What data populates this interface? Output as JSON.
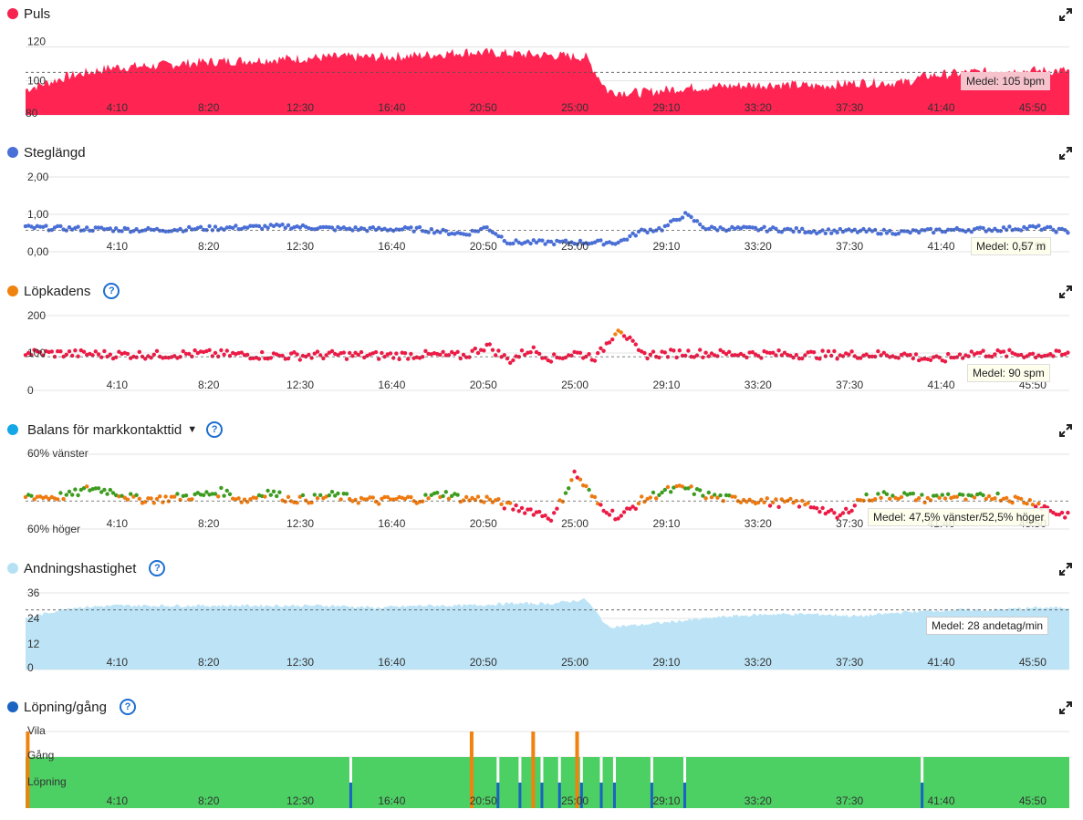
{
  "x_ticks": [
    "4:10",
    "8:20",
    "12:30",
    "16:40",
    "20:50",
    "25:00",
    "29:10",
    "33:20",
    "37:30",
    "41:40",
    "45:50"
  ],
  "panels": {
    "puls": {
      "title": "Puls",
      "color": "#f4234f",
      "y_labels": [
        "120",
        "100",
        "80"
      ],
      "avg_label": "Medel: 105 bpm"
    },
    "steg": {
      "title": "Steglängd",
      "color": "#4a6fd6",
      "y_labels": [
        "2,00",
        "1,00",
        "0,00"
      ],
      "avg_label": "Medel: 0,57 m"
    },
    "kadens": {
      "title": "Löpkadens",
      "color": "#f0820f",
      "y_labels": [
        "200",
        "100",
        "0"
      ],
      "avg_label": "Medel: 90 spm"
    },
    "balans": {
      "title": "Balans för markkontakttid",
      "color": "#14a7e8",
      "y_labels": [
        "60% vänster",
        "60% höger"
      ],
      "avg_label": "Medel: 47,5% vänster/52,5% höger"
    },
    "andning": {
      "title": "Andningshastighet",
      "color": "#b6e0f4",
      "y_labels": [
        "36",
        "24",
        "12",
        "0"
      ],
      "avg_label": "Medel: 28 andetag/min"
    },
    "lopning": {
      "title": "Löpning/gång",
      "color": "#1a63c2",
      "y_labels": [
        "Vila",
        "Gång",
        "Löpning"
      ]
    }
  },
  "chart_data": [
    {
      "type": "area",
      "title": "Puls",
      "x_range": [
        "0:00",
        "47:30"
      ],
      "ylim": [
        80,
        125
      ],
      "average": 105,
      "series": [
        {
          "name": "Puls",
          "x_min": [
            0,
            2,
            4,
            6,
            8,
            10,
            12,
            14,
            16,
            18,
            20,
            22,
            24,
            25.5,
            26.5,
            28,
            30,
            32,
            34,
            36,
            38,
            40,
            41,
            43,
            45,
            47.3
          ],
          "values": [
            95,
            103,
            108,
            109,
            111,
            112,
            113,
            114,
            114,
            115,
            117,
            116,
            115,
            114,
            94,
            93,
            96,
            97,
            98,
            97,
            99,
            99,
            103,
            105,
            106,
            106
          ]
        }
      ]
    },
    {
      "type": "scatter",
      "title": "Steglängd",
      "x_range": [
        "0:00",
        "47:30"
      ],
      "ylim": [
        0,
        2
      ],
      "average": 0.57,
      "series": [
        {
          "name": "Steglängd",
          "x_min": [
            0,
            2,
            4,
            6,
            8,
            10,
            12,
            14,
            16,
            18,
            20,
            21,
            22,
            23,
            24,
            25,
            26,
            27,
            28,
            29,
            30,
            31,
            32,
            34,
            36,
            38,
            40,
            42,
            44,
            46,
            47.3
          ],
          "values": [
            0.65,
            0.62,
            0.6,
            0.58,
            0.62,
            0.65,
            0.68,
            0.62,
            0.6,
            0.6,
            0.47,
            0.65,
            0.25,
            0.25,
            0.25,
            0.25,
            0.25,
            0.25,
            0.55,
            0.62,
            1.0,
            0.62,
            0.62,
            0.6,
            0.55,
            0.55,
            0.52,
            0.58,
            0.6,
            0.65,
            0.55
          ]
        }
      ]
    },
    {
      "type": "scatter",
      "title": "Löpkadens",
      "x_range": [
        "0:00",
        "47:30"
      ],
      "ylim": [
        0,
        200
      ],
      "average": 90,
      "series": [
        {
          "name": "Löpkadens",
          "x_min": [
            0,
            2,
            4,
            6,
            8,
            10,
            12,
            14,
            16,
            18,
            20,
            21,
            22,
            23,
            24,
            25,
            26,
            27,
            28,
            30,
            32,
            34,
            36,
            38,
            40,
            41.5,
            43,
            45,
            47.3
          ],
          "values": [
            100,
            98,
            96,
            95,
            98,
            95,
            92,
            95,
            93,
            95,
            92,
            120,
            80,
            110,
            85,
            100,
            88,
            170,
            95,
            100,
            98,
            97,
            95,
            96,
            95,
            80,
            100,
            97,
            95
          ]
        }
      ]
    },
    {
      "type": "scatter",
      "title": "Balans för markkontakttid",
      "x_range": [
        "0:00",
        "47:30"
      ],
      "y_unit": "% vänster",
      "ylim": [
        40,
        60
      ],
      "average": 47.5,
      "series": [
        {
          "name": "Balans",
          "x_min": [
            0,
            1,
            2,
            3,
            4,
            5,
            6,
            7,
            8,
            9,
            10,
            11,
            12,
            13,
            14,
            15,
            16,
            17,
            18,
            19,
            20,
            21,
            22,
            23,
            24,
            25,
            26,
            27,
            28,
            29,
            30,
            31,
            32,
            33,
            34,
            35,
            36,
            37,
            38,
            39,
            40,
            41,
            42,
            43,
            44,
            45,
            46,
            47
          ],
          "values": [
            49,
            48.5,
            49,
            51,
            50,
            48,
            48,
            48.5,
            49,
            50,
            47.5,
            50,
            48,
            48,
            49,
            48,
            47.5,
            48,
            48,
            49.5,
            48,
            48,
            46,
            45,
            43,
            55,
            47,
            43,
            47.5,
            50,
            51,
            49,
            48,
            48,
            47,
            47,
            46,
            43,
            48,
            49,
            49,
            48,
            49,
            48,
            49,
            48,
            47,
            44
          ]
        }
      ]
    },
    {
      "type": "area",
      "title": "Andningshastighet",
      "x_range": [
        "0:00",
        "47:30"
      ],
      "ylim": [
        0,
        36
      ],
      "average": 28,
      "series": [
        {
          "name": "Andningshastighet",
          "x_min": [
            0,
            2,
            4,
            6,
            8,
            10,
            12,
            14,
            16,
            18,
            20,
            22,
            24,
            25.5,
            26.5,
            28,
            30,
            32,
            34,
            36,
            38,
            40,
            42,
            44,
            46,
            47.3
          ],
          "values": [
            24,
            29,
            30,
            30,
            30,
            30,
            30,
            30,
            29,
            30,
            30,
            31,
            31,
            33,
            20,
            21,
            23,
            25,
            26,
            26,
            25,
            27,
            28,
            28,
            29,
            29
          ]
        }
      ]
    },
    {
      "type": "area",
      "title": "Löpning/gång",
      "x_range": [
        "0:00",
        "47:30"
      ],
      "categories": [
        "Löpning",
        "Gång",
        "Vila"
      ],
      "base_state": "Löpning",
      "walk_events_min": [
        14.8,
        21.5,
        22.5,
        23.5,
        24.3,
        25.3,
        26.2,
        26.8,
        28.5,
        30.0,
        40.8
      ],
      "rest_events_min": [
        0.1,
        20.3,
        23.1,
        25.1
      ]
    }
  ]
}
